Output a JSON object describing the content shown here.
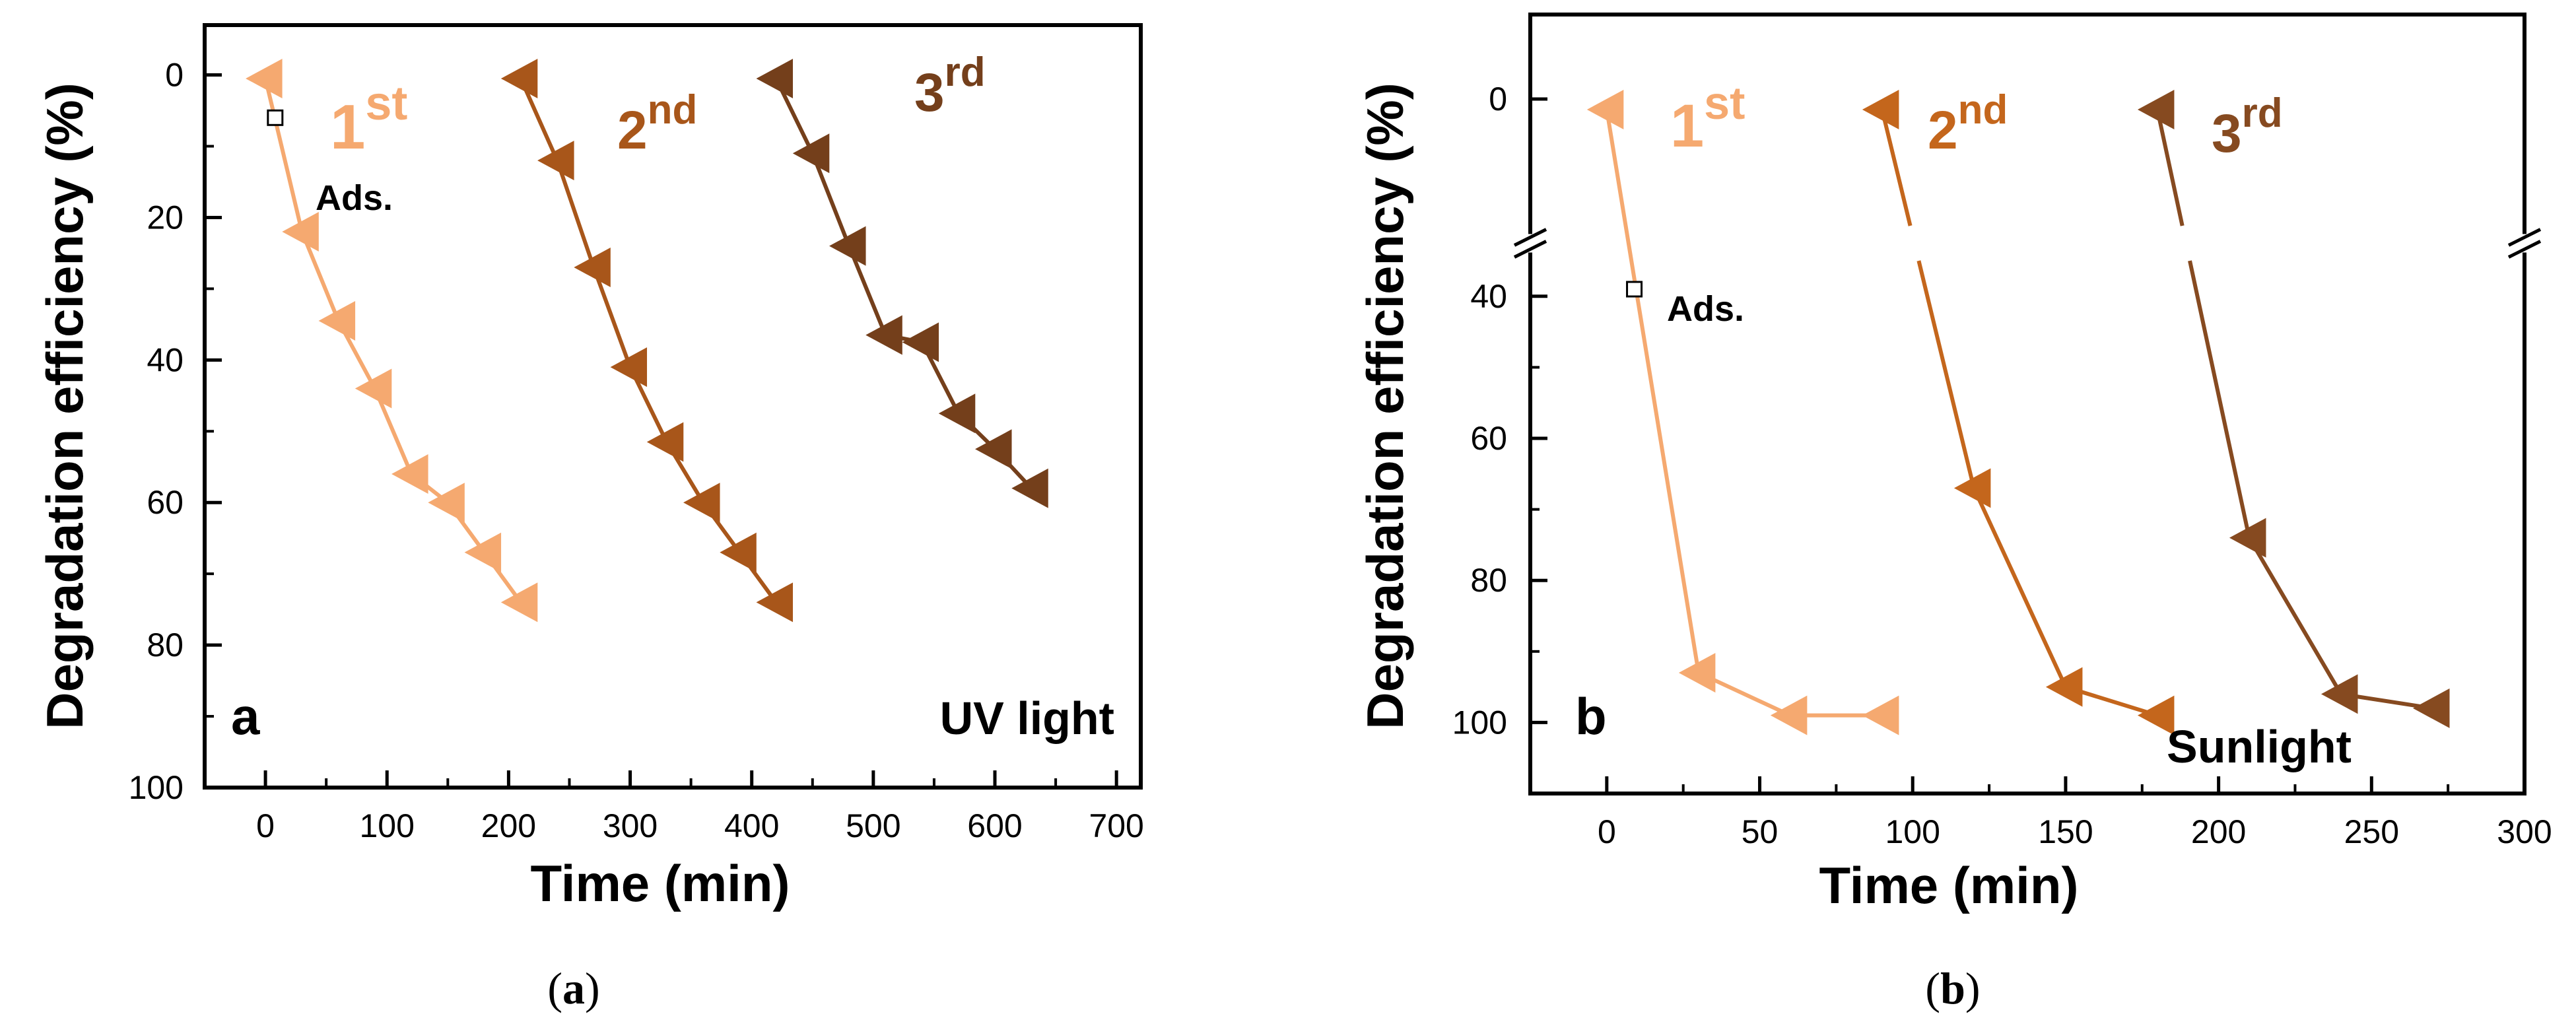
{
  "chart_data": [
    {
      "id": "a",
      "type": "line",
      "panel_letter": "a",
      "condition": "UV light",
      "caption_paren_open": "(",
      "caption_letter": "a",
      "caption_paren_close": ")",
      "xlabel": "Time (min)",
      "ylabel": "Degradation efficiency (%)",
      "xlim": [
        -50,
        720
      ],
      "ylim": [
        100,
        -7
      ],
      "x_inverted": false,
      "y_inverted": true,
      "xticks": [
        0,
        100,
        200,
        300,
        400,
        500,
        600,
        700
      ],
      "xtick_labels": [
        "0",
        "100",
        "200",
        "300",
        "400",
        "500",
        "600",
        "700"
      ],
      "yticks": [
        0,
        20,
        40,
        60,
        80,
        100
      ],
      "ytick_labels": [
        "0",
        "20",
        "40",
        "60",
        "80",
        "100"
      ],
      "marker": "triangle-left",
      "ads_point": {
        "x": 8,
        "y": 6,
        "label": "Ads."
      },
      "series": [
        {
          "name": "1st",
          "label_main": "1",
          "label_sup": "st",
          "color": "#F5A970",
          "x": [
            0,
            30,
            60,
            90,
            120,
            150,
            180,
            210
          ],
          "y": [
            0.5,
            22,
            34.5,
            44,
            56,
            60,
            67,
            74
          ],
          "skip_segment_after": []
        },
        {
          "name": "2nd",
          "label_main": "2",
          "label_sup": "nd",
          "color": "#A8561A",
          "x": [
            210,
            240,
            270,
            300,
            330,
            360,
            390,
            420
          ],
          "y": [
            0.5,
            12,
            27,
            41,
            51.5,
            60,
            67,
            74
          ],
          "skip_segment_after": []
        },
        {
          "name": "3rd",
          "label_main": "3",
          "label_sup": "rd",
          "color": "#743F1B",
          "x": [
            420,
            450,
            480,
            510,
            540,
            570,
            600,
            630
          ],
          "y": [
            0.5,
            11,
            24,
            36.5,
            37.5,
            47.5,
            52.5,
            58
          ],
          "skip_segment_after": []
        }
      ]
    },
    {
      "id": "b",
      "type": "line",
      "panel_letter": "b",
      "condition": "Sunlight",
      "caption_paren_open": "(",
      "caption_letter": "b",
      "caption_paren_close": ")",
      "xlabel": "Time (min)",
      "ylabel": "Degradation efficiency (%)",
      "xlim": [
        -25,
        300
      ],
      "y_axis_break": true,
      "y_segments": [
        {
          "data_min": -8,
          "data_max": 12
        },
        {
          "data_min": 35,
          "data_max": 110
        }
      ],
      "xticks": [
        0,
        50,
        100,
        150,
        200,
        250,
        300
      ],
      "xtick_labels": [
        "0",
        "50",
        "100",
        "150",
        "200",
        "250",
        "300"
      ],
      "yticks": [
        0,
        40,
        60,
        80,
        100
      ],
      "ytick_labels": [
        "0",
        "40",
        "60",
        "80",
        "100"
      ],
      "marker": "triangle-left",
      "ads_point": {
        "x": 9,
        "y": 39,
        "label": "Ads."
      },
      "series": [
        {
          "name": "1st",
          "label_main": "1",
          "label_sup": "st",
          "color": "#F5A970",
          "x": [
            0,
            30,
            60,
            90
          ],
          "y": [
            1,
            93,
            99,
            99
          ],
          "skip_segment_after": []
        },
        {
          "name": "2nd",
          "label_main": "2",
          "label_sup": "nd",
          "color": "#C4661C",
          "x": [
            90,
            120,
            150,
            180
          ],
          "y": [
            1,
            67,
            95,
            99
          ],
          "skip_segment_after": [
            0
          ]
        },
        {
          "name": "3rd",
          "label_main": "3",
          "label_sup": "rd",
          "color": "#864A20",
          "x": [
            180,
            210,
            240,
            270
          ],
          "y": [
            1,
            74,
            96,
            98
          ],
          "skip_segment_after": [
            0
          ]
        }
      ]
    }
  ]
}
